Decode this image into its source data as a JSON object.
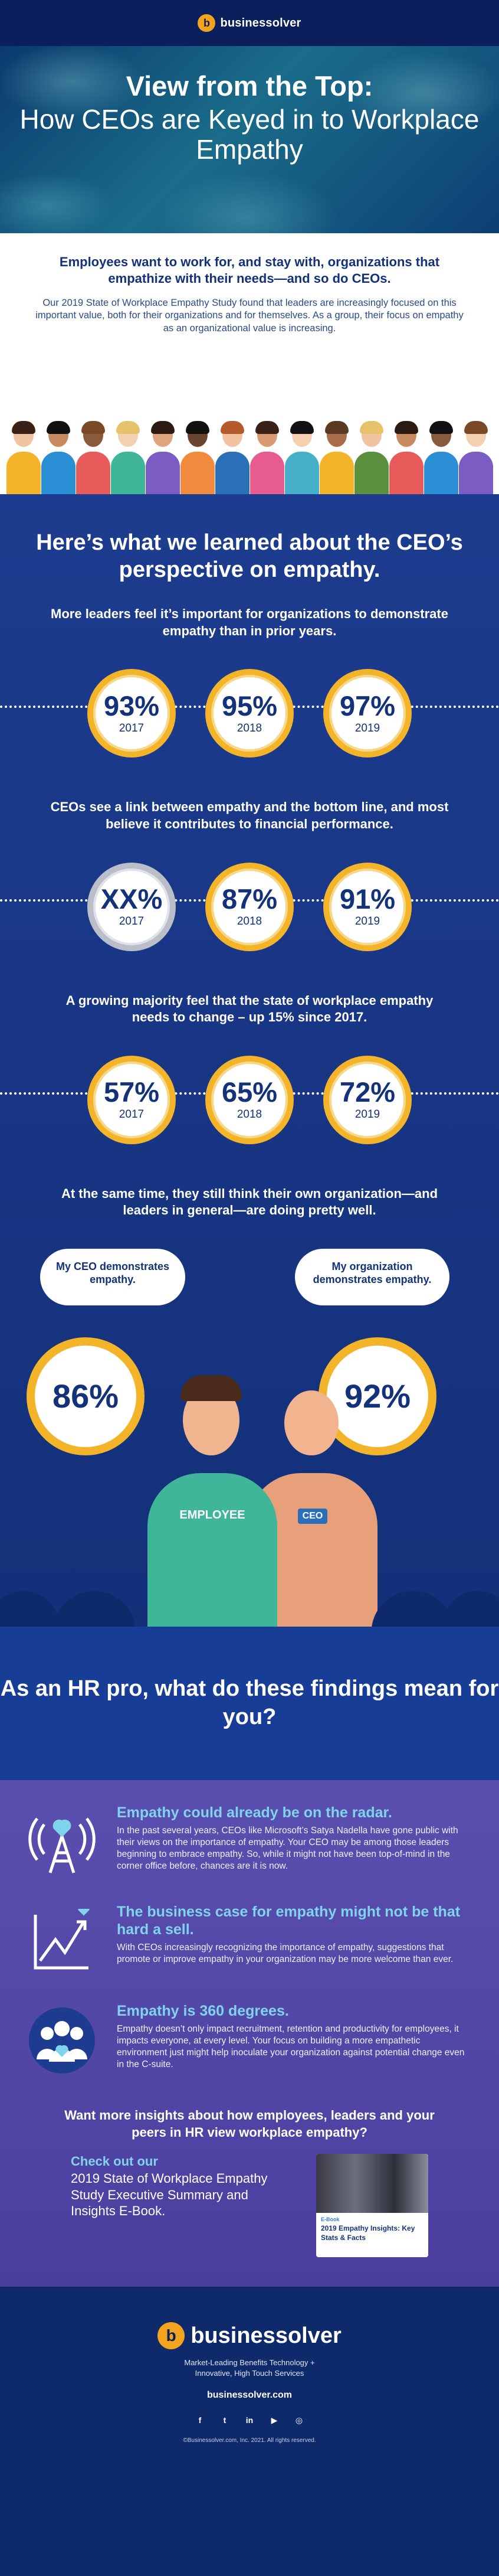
{
  "brand": {
    "name": "businessolver",
    "mark": "b"
  },
  "hero": {
    "title_line1": "View from the Top:",
    "title_line2": "How CEOs are Keyed in to Workplace Empathy"
  },
  "intro": {
    "lead": "Employees want to work for, and stay with, organizations that empathize with their needs—and so do CEOs.",
    "body": "Our 2019 State of Workplace Empathy Study found that leaders are increasingly focused on this important value, both for their organizations and for themselves. As a group, their focus on empathy as an organizational value is increasing."
  },
  "learned": {
    "heading": "Here’s what we learned about the CEO’s perspective on empathy.",
    "blocks": [
      {
        "head": "More leaders feel it’s important for organizations to demonstrate empathy than in prior years.",
        "stats": [
          {
            "pct": "93%",
            "year": "2017"
          },
          {
            "pct": "95%",
            "year": "2018"
          },
          {
            "pct": "97%",
            "year": "2019"
          }
        ]
      },
      {
        "head": "CEOs see a link between empathy and the bottom line, and most believe it contributes to financial performance.",
        "stats": [
          {
            "pct": "XX%",
            "year": "2017"
          },
          {
            "pct": "87%",
            "year": "2018"
          },
          {
            "pct": "91%",
            "year": "2019"
          }
        ]
      },
      {
        "head": "A growing majority feel that the state of workplace empathy needs to change – up 15% since 2017.",
        "stats": [
          {
            "pct": "57%",
            "year": "2017"
          },
          {
            "pct": "65%",
            "year": "2018"
          },
          {
            "pct": "72%",
            "year": "2019"
          }
        ]
      },
      {
        "head": "At the same time, they still think their own organization—and leaders in general—are doing pretty well."
      }
    ],
    "bubble_left": "My CEO demonstrates empathy.",
    "bubble_right": "My organization demonstrates empathy.",
    "pct_left": "86%",
    "pct_right": "92%",
    "shirt_employee": "EMPLOYEE",
    "shirt_ceo": "CEO"
  },
  "hrpro": {
    "heading": "As an HR pro, what do these findings mean for you?"
  },
  "meaning": {
    "items": [
      {
        "icon": "radio-tower-heart-icon",
        "title": "Empathy could already be on the radar.",
        "body": "In the past several years, CEOs like Microsoft’s Satya Nadella have gone public with their views on the importance of empathy. Your CEO may be among those leaders beginning to embrace empathy. So, while it might not have been top-of-mind in the corner office before, chances are it is now."
      },
      {
        "icon": "growth-chart-icon",
        "title": "The business case for empathy might not be that hard a sell.",
        "body": "With CEOs increasingly recognizing the importance of empathy, suggestions that promote or improve empathy in your organization may be more welcome than ever."
      },
      {
        "icon": "people-heart-icon",
        "title": "Empathy is 360 degrees.",
        "body": "Empathy doesn’t only impact recruitment, retention and productivity for employees, it impacts everyone, at every level. Your focus on building a more empathetic environment just might help inoculate your organization against potential change even in the C-suite."
      }
    ],
    "cta": "Want more insights about how employees, leaders and your peers in HR view workplace empathy?",
    "ebook_kicker": "Check out our",
    "ebook_desc": "2019 State of Workplace Empathy Study Executive Summary and Insights E-Book.",
    "card_label": "E-Book",
    "card_caption": "2019 Empathy Insights: Key Stats & Facts"
  },
  "footer": {
    "tagline_1": "Market-Leading Benefits Technology +",
    "tagline_2": "Innovative, High Touch Services",
    "url": "businessolver.com",
    "social": [
      {
        "icon": "facebook-icon",
        "glyph": "f"
      },
      {
        "icon": "twitter-icon",
        "glyph": "t"
      },
      {
        "icon": "linkedin-icon",
        "glyph": "in"
      },
      {
        "icon": "youtube-icon",
        "glyph": "▶"
      },
      {
        "icon": "instagram-icon",
        "glyph": "◎"
      }
    ],
    "copyright": "©Businessolver.com, Inc. 2021. All rights reserved."
  },
  "colors": {
    "navy": "#0f2a6b",
    "accent_gold": "#f4b42a",
    "accent_cyan": "#7fd3ec",
    "purple": "#5a4fae"
  }
}
